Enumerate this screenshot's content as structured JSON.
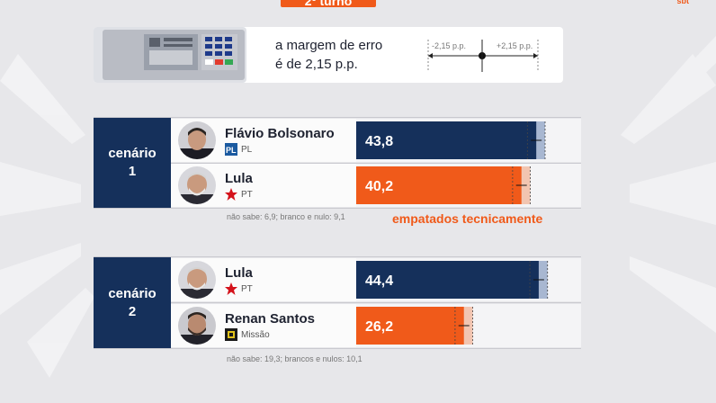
{
  "header": {
    "round_tag": "2º turno",
    "brand": "sbt"
  },
  "legend": {
    "margin_line1": "a margem de erro",
    "margin_line2": "é de 2,15 p.p.",
    "neg_label": "-2,15 p.p.",
    "pos_label": "+2,15 p.p."
  },
  "colors": {
    "blue_bar": "#15305b",
    "orange_bar": "#f05a1a",
    "accent": "#f05a1a"
  },
  "scenarios": [
    {
      "label_line1": "cenário",
      "label_line2": "1",
      "candidates": [
        {
          "name": "Flávio Bolsonaro",
          "party": "PL",
          "value_label": "43,8",
          "color": "#15305b",
          "avatar_icon": "candidate-photo"
        },
        {
          "name": "Lula",
          "party": "PT",
          "value_label": "40,2",
          "color": "#f05a1a",
          "avatar_icon": "candidate-photo"
        }
      ],
      "note": "não sabe: 6,9; branco e nulo: 9,1",
      "tie_label": "empatados tecnicamente"
    },
    {
      "label_line1": "cenário",
      "label_line2": "2",
      "candidates": [
        {
          "name": "Lula",
          "party": "PT",
          "value_label": "44,4",
          "color": "#15305b",
          "avatar_icon": "candidate-photo"
        },
        {
          "name": "Renan Santos",
          "party": "Missão",
          "value_label": "26,2",
          "color": "#f05a1a",
          "avatar_icon": "candidate-photo"
        }
      ],
      "note": "não sabe: 19,3; brancos e nulos: 10,1"
    }
  ],
  "chart_data": {
    "type": "bar",
    "orientation": "horizontal",
    "margin_of_error": 2.15,
    "groups": [
      {
        "group": "cenário 1",
        "categories": [
          "Flávio Bolsonaro",
          "Lula"
        ],
        "values": [
          43.8,
          40.2
        ]
      },
      {
        "group": "cenário 2",
        "categories": [
          "Lula",
          "Renan Santos"
        ],
        "values": [
          44.4,
          26.2
        ]
      }
    ]
  }
}
